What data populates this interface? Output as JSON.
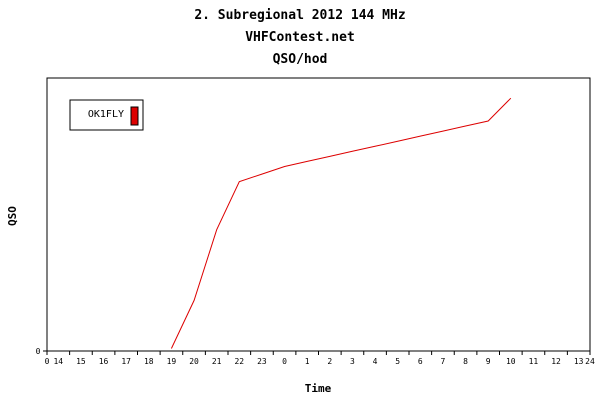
{
  "chart_data": {
    "type": "line",
    "title": "2. Subregional 2012 144 MHz",
    "subtitle": "VHFContest.net",
    "subtitle2": "QSO/hod",
    "xlabel": "Time",
    "ylabel": "QSO",
    "y_axis_zero_label": "0",
    "x_axis_zero_label": "0",
    "x_axis_end_label": "24",
    "xlim": [
      0,
      24
    ],
    "ylim": [
      0,
      108
    ],
    "x_tick_labels": [
      "14",
      "15",
      "16",
      "17",
      "18",
      "19",
      "20",
      "21",
      "22",
      "23",
      "0",
      "1",
      "2",
      "3",
      "4",
      "5",
      "6",
      "7",
      "8",
      "9",
      "10",
      "11",
      "12",
      "13"
    ],
    "grid": false,
    "legend_placement": "top-left",
    "series": [
      {
        "name": "OK1FLY",
        "color": "#dd0000",
        "x": [
          5.5,
          6.5,
          7.5,
          8.5,
          9.5,
          10.5,
          11.5,
          12.5,
          13.5,
          14.5,
          15.5,
          16.5,
          17.5,
          18.5,
          19.5,
          20.5
        ],
        "y": [
          1,
          20,
          48,
          67,
          70,
          73,
          75,
          77,
          79,
          81,
          83,
          85,
          87,
          89,
          91,
          100
        ]
      }
    ]
  }
}
